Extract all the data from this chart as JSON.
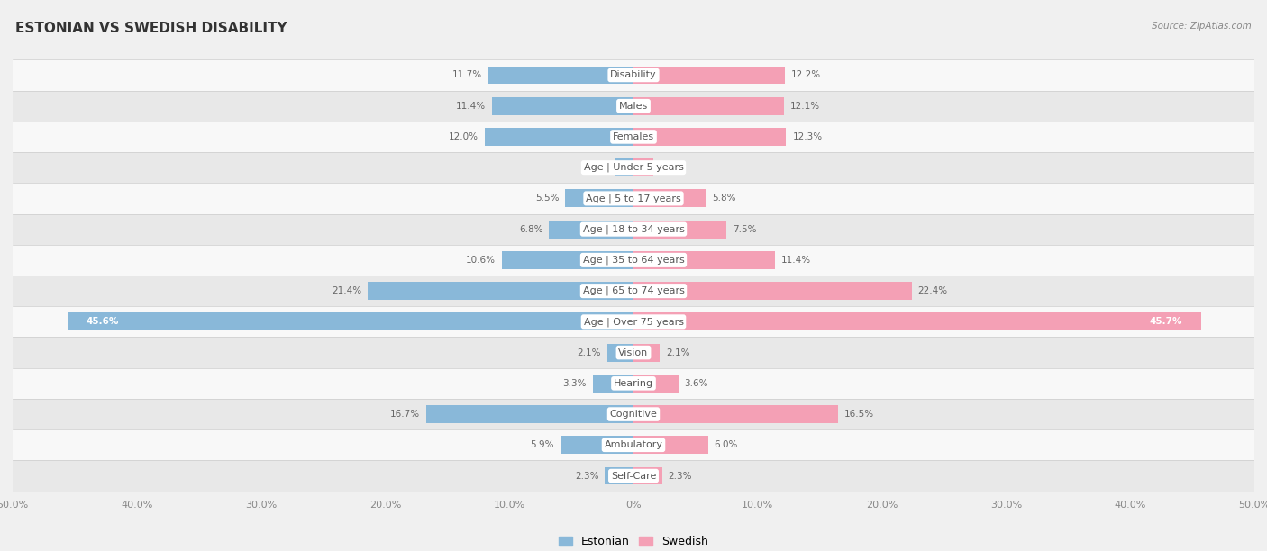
{
  "title": "ESTONIAN VS SWEDISH DISABILITY",
  "source": "Source: ZipAtlas.com",
  "categories": [
    "Disability",
    "Males",
    "Females",
    "Age | Under 5 years",
    "Age | 5 to 17 years",
    "Age | 18 to 34 years",
    "Age | 35 to 64 years",
    "Age | 65 to 74 years",
    "Age | Over 75 years",
    "Vision",
    "Hearing",
    "Cognitive",
    "Ambulatory",
    "Self-Care"
  ],
  "estonian": [
    11.7,
    11.4,
    12.0,
    1.5,
    5.5,
    6.8,
    10.6,
    21.4,
    45.6,
    2.1,
    3.3,
    16.7,
    5.9,
    2.3
  ],
  "swedish": [
    12.2,
    12.1,
    12.3,
    1.6,
    5.8,
    7.5,
    11.4,
    22.4,
    45.7,
    2.1,
    3.6,
    16.5,
    6.0,
    2.3
  ],
  "estonian_color": "#89b8d9",
  "swedish_color": "#f4a0b5",
  "estonian_label": "Estonian",
  "swedish_label": "Swedish",
  "x_max": 50.0,
  "background_color": "#f0f0f0",
  "row_bg_light": "#f8f8f8",
  "row_bg_dark": "#e8e8e8",
  "bar_height": 0.58,
  "title_fontsize": 11,
  "label_fontsize": 8,
  "axis_label_fontsize": 8,
  "legend_fontsize": 9,
  "value_fontsize": 7.5
}
